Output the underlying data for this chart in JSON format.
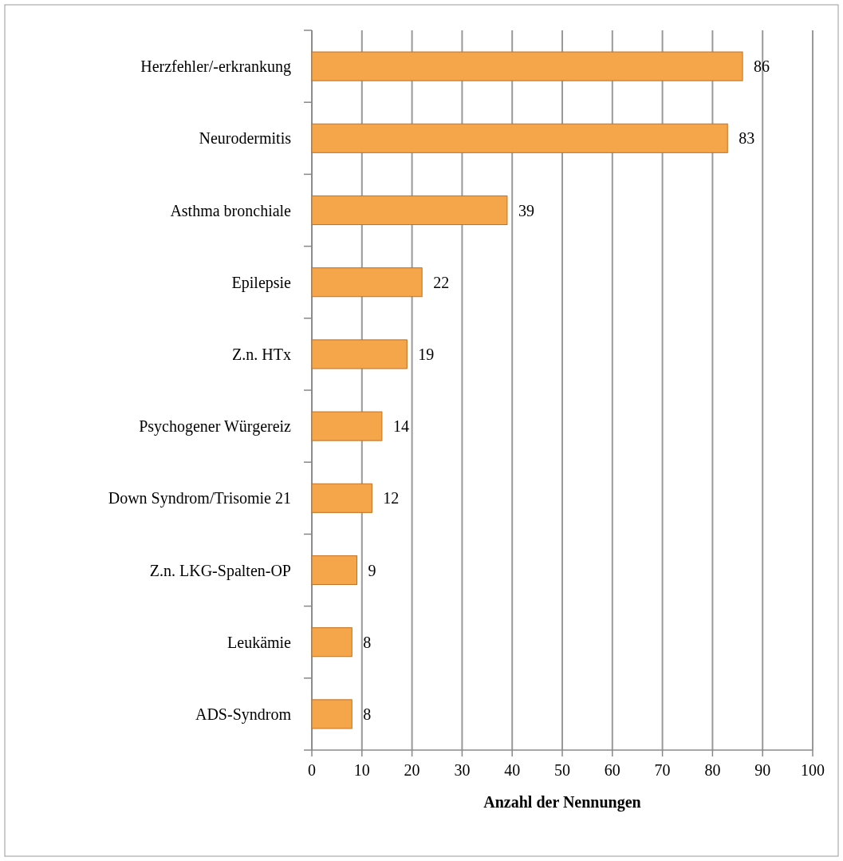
{
  "chart_data": {
    "type": "bar",
    "orientation": "horizontal",
    "xlabel": "Anzahl der Nennungen",
    "categories": [
      "Herzfehler/-erkrankung",
      "Neurodermitis",
      "Asthma bronchiale",
      "Epilepsie",
      "Z.n. HTx",
      "Psychogener Würgereiz",
      "Down Syndrom/Trisomie 21",
      "Z.n. LKG-Spalten-OP",
      "Leukämie",
      "ADS-Syndrom"
    ],
    "values": [
      86,
      83,
      39,
      22,
      19,
      14,
      12,
      9,
      8,
      8
    ],
    "color": "#f5a54a",
    "xlim": [
      0,
      100
    ],
    "xticks": [
      0,
      10,
      20,
      30,
      40,
      50,
      60,
      70,
      80,
      90,
      100
    ],
    "grid": "x",
    "data_labels": true
  }
}
